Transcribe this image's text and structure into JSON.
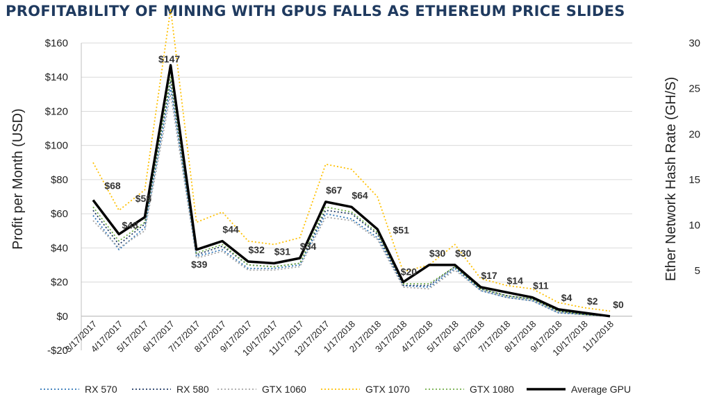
{
  "chart_data": {
    "type": "line",
    "title": "PROFITABILITY OF MINING WITH GPUS FALLS AS ETHEREUM PRICE SLIDES",
    "ylabel": "Profit per Month (USD)",
    "y2label": "Ether Network Hash Rate (GH/S)",
    "ylim": [
      -20,
      160
    ],
    "yticks": [
      -20,
      0,
      20,
      40,
      60,
      80,
      100,
      120,
      140,
      160
    ],
    "ytick_labels": [
      "-$20",
      "$0",
      "$20",
      "$40",
      "$60",
      "$80",
      "$100",
      "$120",
      "$140",
      "$160"
    ],
    "y2ticks": [
      "5",
      "10",
      "15",
      "20",
      "25",
      "30"
    ],
    "y2ticks_values": [
      5,
      10,
      15,
      20,
      25,
      30
    ],
    "y2lim": [
      0,
      30
    ],
    "grid": true,
    "legend_position": "bottom",
    "categories": [
      "3/17/2017",
      "4/17/2017",
      "5/17/2017",
      "6/17/2017",
      "7/17/2017",
      "8/17/2017",
      "9/17/2017",
      "10/17/2017",
      "11/17/2017",
      "12/17/2017",
      "1/17/2018",
      "2/17/2018",
      "3/17/2018",
      "4/17/2018",
      "5/17/2018",
      "6/17/2018",
      "7/17/2018",
      "8/17/2018",
      "9/17/2018",
      "10/17/2018",
      "11/1/2018"
    ],
    "series": [
      {
        "name": "RX 570",
        "color": "#2e75b6",
        "style": "dotted",
        "values": [
          59,
          39,
          52,
          134,
          35,
          39,
          28,
          28,
          30,
          60,
          57,
          46,
          18,
          17,
          28,
          15,
          11,
          9,
          2,
          1,
          0
        ]
      },
      {
        "name": "RX 580",
        "color": "#1f3864",
        "style": "dotted",
        "values": [
          62,
          42,
          54,
          138,
          36,
          41,
          30,
          29,
          31,
          62,
          60,
          48,
          18,
          18,
          29,
          16,
          12,
          10,
          3,
          1,
          0
        ]
      },
      {
        "name": "GTX 1060",
        "color": "#a5a5a5",
        "style": "dotted",
        "values": [
          56,
          40,
          50,
          130,
          34,
          38,
          27,
          27,
          29,
          58,
          56,
          45,
          17,
          16,
          27,
          15,
          11,
          9,
          2,
          1,
          0
        ]
      },
      {
        "name": "GTX 1070",
        "color": "#ffc000",
        "style": "dotted",
        "values": [
          90,
          62,
          74,
          180,
          55,
          61,
          44,
          42,
          46,
          89,
          86,
          70,
          26,
          30,
          42,
          22,
          18,
          16,
          8,
          5,
          3
        ]
      },
      {
        "name": "GTX 1080",
        "color": "#70ad47",
        "style": "dotted",
        "values": [
          64,
          44,
          55,
          140,
          37,
          42,
          30,
          29,
          31,
          64,
          61,
          49,
          19,
          19,
          29,
          16,
          12,
          10,
          3,
          1,
          0
        ]
      },
      {
        "name": "Average GPU",
        "color": "#000000",
        "style": "solid",
        "values": [
          68,
          48,
          58,
          147,
          39,
          44,
          32,
          31,
          34,
          67,
          64,
          51,
          20,
          30,
          30,
          17,
          14,
          11,
          4,
          2,
          0
        ]
      }
    ],
    "data_labels": [
      "$68",
      "$48",
      "$58",
      "$147",
      "$39",
      "$44",
      "$32",
      "$31",
      "$34",
      "$67",
      "$64",
      "$51",
      "$20",
      "$30",
      "$30",
      "$17",
      "$14",
      "$11",
      "$4",
      "$2",
      "$0"
    ]
  }
}
